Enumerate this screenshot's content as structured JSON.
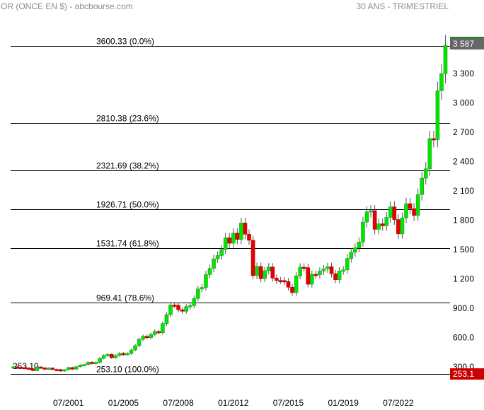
{
  "header": {
    "title": "OR (ONCE EN $) - abcbourse.com",
    "period": "30 ANS - TRIMESTRIEL"
  },
  "colors": {
    "up": "#00e600",
    "down": "#e60000",
    "last_price_bg": "#666666",
    "low_price_bg": "#cc0000"
  },
  "chart_data": {
    "type": "candlestick",
    "interval": "quarterly",
    "first_period": "1998-Q1",
    "ylim": [
      250,
      3650
    ],
    "yticks": [
      "3 300",
      "3 000",
      "2 700",
      "2 400",
      "2 100",
      "1 800",
      "1 500",
      "1 200",
      "900.0",
      "600.0",
      "300.0"
    ],
    "ytick_values": [
      3300,
      3000,
      2700,
      2400,
      2100,
      1800,
      1500,
      1200,
      900,
      600,
      300
    ],
    "xticks": [
      {
        "label": "07/2001",
        "period": "2001-Q3"
      },
      {
        "label": "01/2005",
        "period": "2005-Q1"
      },
      {
        "label": "07/2008",
        "period": "2008-Q3"
      },
      {
        "label": "01/2012",
        "period": "2012-Q1"
      },
      {
        "label": "07/2015",
        "period": "2015-Q3"
      },
      {
        "label": "01/2019",
        "period": "2019-Q1"
      },
      {
        "label": "07/2022",
        "period": "2022-Q3"
      }
    ],
    "first_open": 290,
    "close": [
      301,
      296,
      293,
      288,
      280,
      262,
      299,
      290,
      278,
      288,
      273,
      272,
      258,
      271,
      293,
      277,
      302,
      318,
      324,
      347,
      334,
      346,
      388,
      416,
      427,
      394,
      416,
      438,
      428,
      437,
      473,
      517,
      582,
      613,
      599,
      632,
      662,
      650,
      743,
      834,
      933,
      930,
      884,
      869,
      916,
      927,
      1000,
      1096,
      1113,
      1244,
      1307,
      1405,
      1439,
      1500,
      1620,
      1565,
      1668,
      1604,
      1772,
      1657,
      1595,
      1234,
      1327,
      1202,
      1284,
      1322,
      1208,
      1184,
      1183,
      1172,
      1115,
      1060,
      1232,
      1320,
      1315,
      1146,
      1247,
      1242,
      1280,
      1302,
      1325,
      1253,
      1192,
      1281,
      1292,
      1409,
      1472,
      1517,
      1577,
      1781,
      1886,
      1898,
      1707,
      1763,
      1743,
      1829,
      1937,
      1807,
      1660,
      1824,
      1969,
      1919,
      1849,
      2063,
      2230,
      2326,
      2635,
      2625,
      3124,
      3300,
      3587
    ],
    "fibonacci": [
      {
        "value": 3600.33,
        "label": "3600.33  (0.0%)"
      },
      {
        "value": 2810.38,
        "label": "2810.38  (23.6%)"
      },
      {
        "value": 2321.69,
        "label": "2321.69  (38.2%)"
      },
      {
        "value": 1926.71,
        "label": "1926.71  (50.0%)"
      },
      {
        "value": 1531.74,
        "label": "1531.74  (61.8%)"
      },
      {
        "value": 969.41,
        "label": "969.41  (78.6%)"
      },
      {
        "value": 253.1,
        "label": "253.10  (100.0%)"
      }
    ],
    "low_marker": "253.10",
    "last_price_label": "3 587",
    "low_price_label": "253.1",
    "grid": false
  }
}
